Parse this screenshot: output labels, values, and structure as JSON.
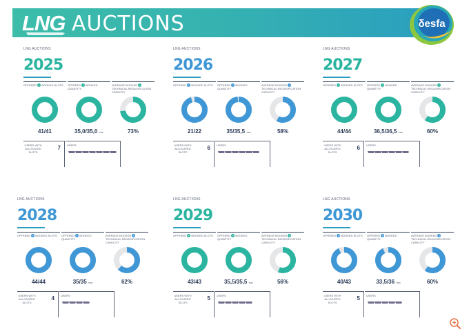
{
  "header": {
    "brand": "LNG",
    "title": "AUCTIONS",
    "logo_text": "δesfa",
    "accent": "#3dbda9",
    "accent2": "#2a9ec0"
  },
  "labels": {
    "section": "LNG AUCTIONS",
    "offered": "OFFERED",
    "booked_slots": "BOOKED SLOTS",
    "booked_quantity": "BOOKED QUANTITY",
    "average_booked": "AVERAGE BOOKED",
    "technical_capacity": "TECHNICAL REGASIFICATION CAPACITY",
    "users_with_slots": "USERS WITH ALLOCATED SLOTS",
    "users": "USERS",
    "unit": "TWh"
  },
  "years": [
    {
      "year": "2025",
      "color": "#2bb5a0",
      "slots": "41/41",
      "slots_frac": 1.0,
      "quantity": "35,0/35,0",
      "quantity_frac": 1.0,
      "capacity": "73%",
      "capacity_frac": 0.73,
      "users": "7",
      "ship_count": 7
    },
    {
      "year": "2026",
      "color": "#3f97d6",
      "slots": "21/22",
      "slots_frac": 0.955,
      "quantity": "35/35,5",
      "quantity_frac": 0.986,
      "capacity": "58%",
      "capacity_frac": 0.58,
      "users": "6",
      "ship_count": 6
    },
    {
      "year": "2027",
      "color": "#2bb5a0",
      "slots": "44/44",
      "slots_frac": 1.0,
      "quantity": "36,5/36,5",
      "quantity_frac": 1.0,
      "capacity": "60%",
      "capacity_frac": 0.6,
      "users": "6",
      "ship_count": 6
    },
    {
      "year": "2028",
      "color": "#3f97d6",
      "slots": "44/44",
      "slots_frac": 1.0,
      "quantity": "35/35",
      "quantity_frac": 1.0,
      "capacity": "62%",
      "capacity_frac": 0.62,
      "users": "4",
      "ship_count": 4
    },
    {
      "year": "2029",
      "color": "#2bb5a0",
      "slots": "43/43",
      "slots_frac": 1.0,
      "quantity": "35,5/35,5",
      "quantity_frac": 1.0,
      "capacity": "56%",
      "capacity_frac": 0.56,
      "users": "5",
      "ship_count": 5
    },
    {
      "year": "2030",
      "color": "#3f97d6",
      "slots": "40/43",
      "slots_frac": 0.93,
      "quantity": "33,5/36",
      "quantity_frac": 0.93,
      "capacity": "60%",
      "capacity_frac": 0.6,
      "users": "5",
      "ship_count": 5
    }
  ]
}
